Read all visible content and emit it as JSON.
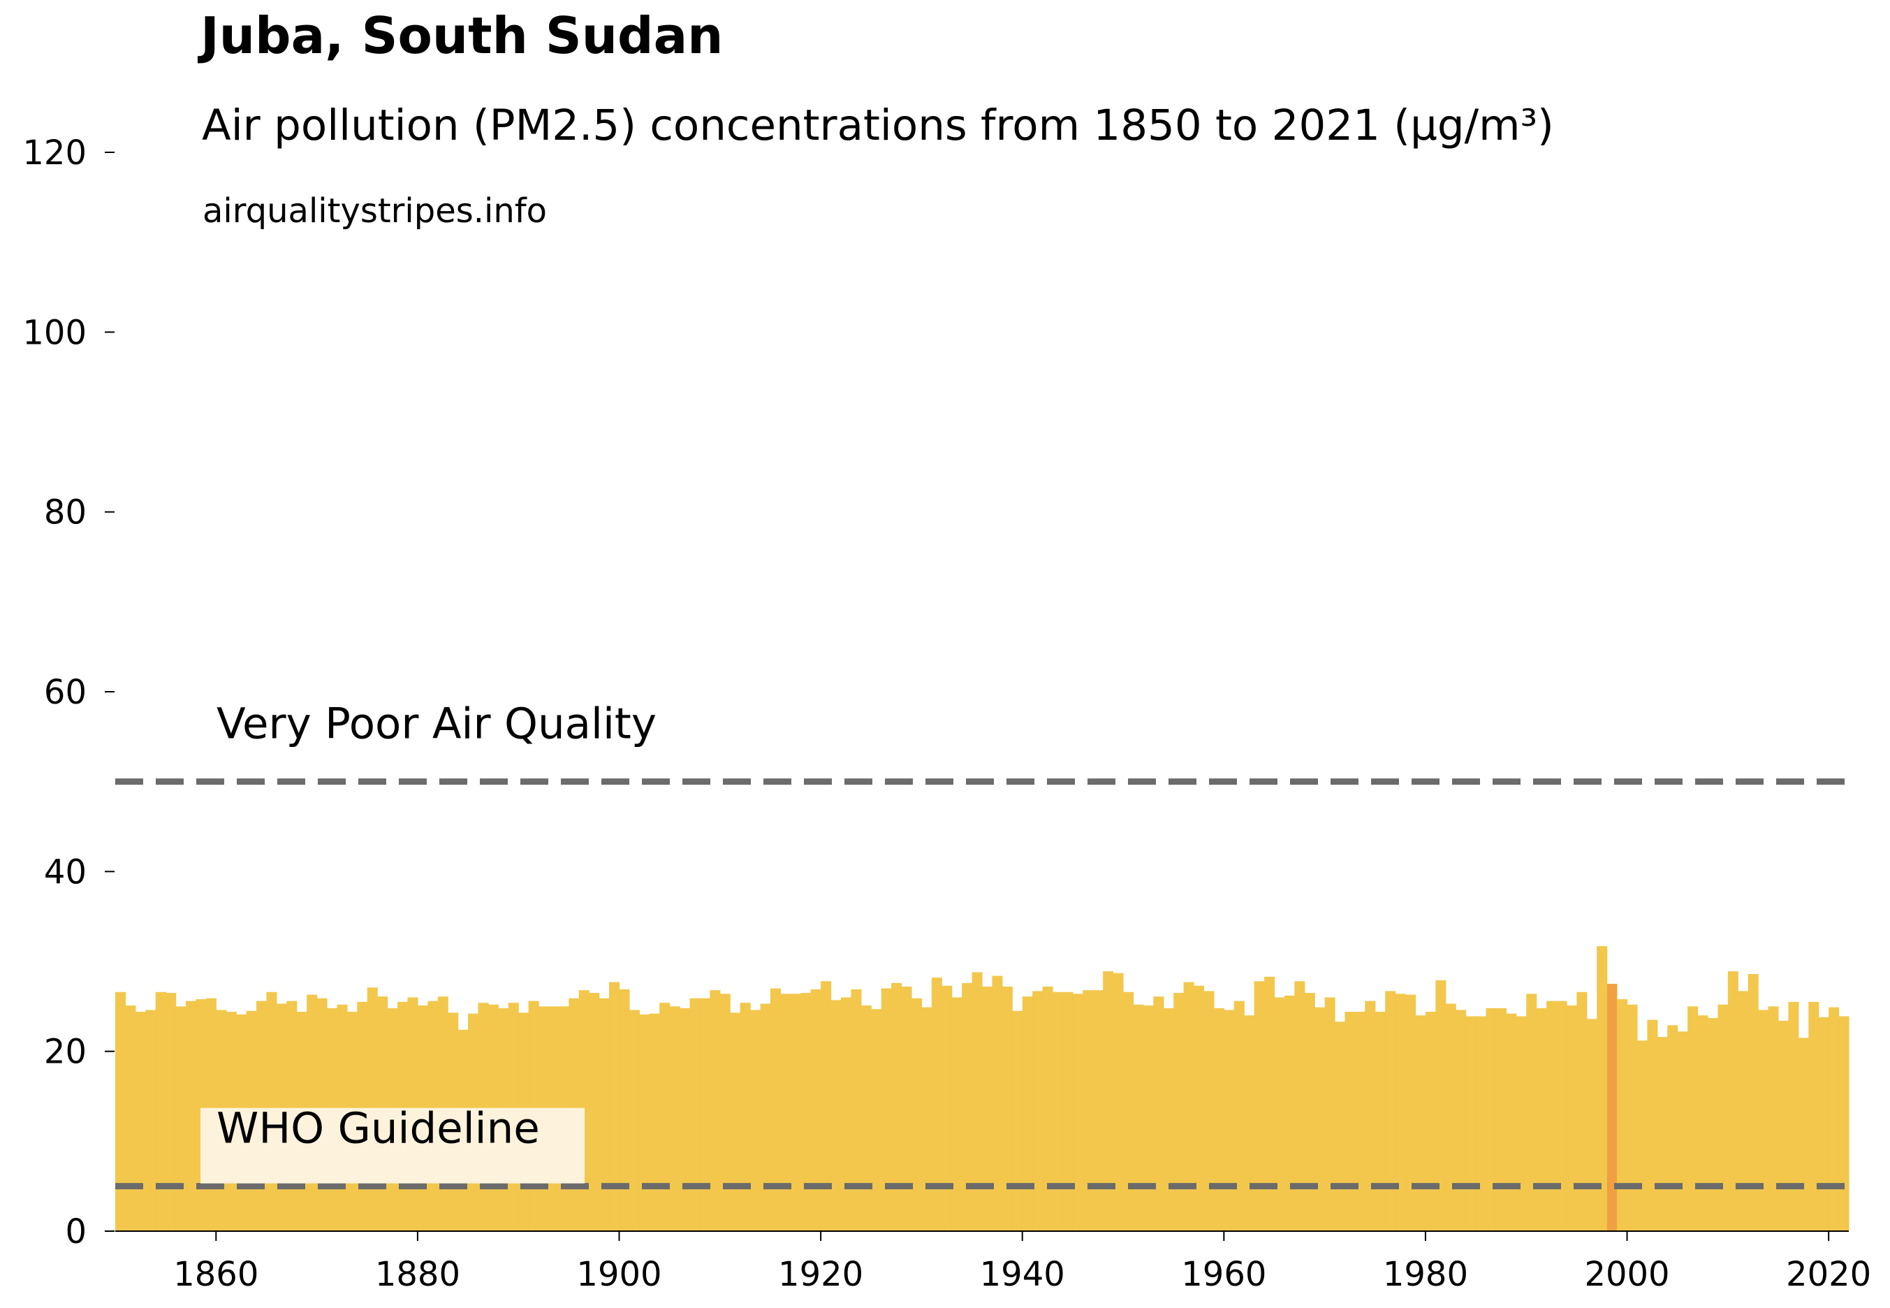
{
  "title": "Juba, South Sudan",
  "subtitle": "Air pollution (PM2.5) concentrations from 1850 to 2021 (µg/m³)",
  "source": "airqualitystripes.info",
  "colors": {
    "bar": "#F2C74C",
    "highlight_bar": "#F0A042",
    "threshold_line": "#6B6B6B",
    "label_box": "#FDF3DC"
  },
  "chart_data": {
    "type": "bar",
    "title": "Juba, South Sudan",
    "subtitle": "Air pollution (PM2.5) concentrations from 1850 to 2021 (µg/m³)",
    "xlabel": "",
    "ylabel": "",
    "x_start": 1850,
    "x_end": 2021,
    "xlim": [
      1850,
      2022
    ],
    "ylim": [
      0,
      120
    ],
    "x_ticks": [
      1860,
      1880,
      1900,
      1920,
      1940,
      1960,
      1980,
      2000,
      2020
    ],
    "y_ticks": [
      0,
      20,
      40,
      60,
      80,
      100,
      120
    ],
    "highlight_year": 1998,
    "grid": false,
    "thresholds": [
      {
        "label": "Very Poor Air Quality",
        "value": 50,
        "style": "dashed"
      },
      {
        "label": "WHO Guideline",
        "value": 5,
        "style": "dashed",
        "boxed": true
      }
    ],
    "values": [
      26.6,
      25.1,
      24.4,
      24.6,
      26.6,
      26.5,
      25.0,
      25.6,
      25.8,
      25.9,
      24.6,
      24.4,
      24.1,
      24.5,
      25.6,
      26.6,
      25.3,
      25.6,
      24.4,
      26.3,
      25.9,
      24.8,
      25.2,
      24.4,
      25.5,
      27.1,
      26.1,
      24.8,
      25.5,
      26.0,
      25.1,
      25.6,
      26.1,
      24.3,
      22.4,
      24.2,
      25.4,
      25.2,
      24.8,
      25.4,
      24.3,
      25.6,
      25.0,
      25.0,
      25.0,
      25.9,
      26.8,
      26.5,
      25.9,
      27.7,
      26.9,
      24.6,
      24.1,
      24.2,
      25.4,
      25.0,
      24.8,
      25.9,
      25.9,
      26.8,
      26.4,
      24.3,
      25.4,
      24.6,
      25.3,
      27.0,
      26.4,
      26.4,
      26.5,
      26.9,
      27.8,
      25.7,
      26.0,
      26.9,
      25.1,
      24.7,
      27.0,
      27.6,
      27.2,
      25.9,
      24.9,
      28.2,
      27.3,
      26.0,
      27.6,
      28.8,
      27.2,
      28.4,
      27.2,
      24.5,
      26.1,
      26.7,
      27.2,
      26.6,
      26.6,
      26.4,
      26.8,
      26.8,
      28.9,
      28.7,
      26.6,
      25.2,
      25.1,
      26.1,
      24.8,
      26.5,
      27.7,
      27.3,
      26.7,
      24.8,
      24.6,
      25.6,
      24.0,
      27.8,
      28.3,
      26.0,
      26.2,
      27.8,
      26.5,
      24.9,
      26.0,
      23.3,
      24.4,
      24.4,
      25.6,
      24.4,
      26.7,
      26.4,
      26.3,
      24.0,
      24.4,
      27.9,
      25.3,
      24.6,
      23.9,
      23.9,
      24.8,
      24.8,
      24.2,
      23.9,
      26.4,
      24.8,
      25.6,
      25.6,
      25.1,
      26.6,
      23.6,
      31.7,
      27.5,
      25.8,
      25.2,
      21.2,
      23.5,
      21.6,
      22.9,
      22.2,
      25.0,
      24.0,
      23.7,
      25.2,
      28.9,
      26.7,
      28.6,
      24.6,
      25.0,
      23.4,
      25.5,
      21.5,
      25.5,
      23.8,
      24.9,
      23.9
    ]
  }
}
